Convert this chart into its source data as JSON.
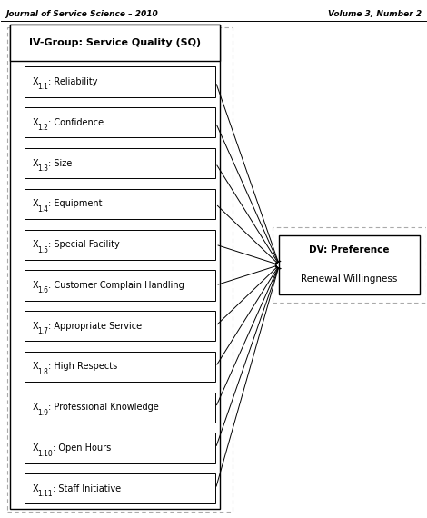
{
  "header_left": "Journal of Service Science – 2010",
  "header_right": "Volume 3, Number 2",
  "iv_group_label": "IV-Group: Service Quality (SQ)",
  "iv_items": [
    "X1.1: Reliability",
    "X1.2: Confidence",
    "X1.3: Size",
    "X1.4: Equipment",
    "X1.5: Special Facility",
    "X1.6: Customer Complain Handling",
    "X1.7: Appropriate Service",
    "X1.8: High Respects",
    "X1.9: Professional Knowledge",
    "X1.10: Open Hours",
    "X1.11: Staff Initiative"
  ],
  "iv_items_display": [
    [
      "X",
      "1.1",
      ": Reliability"
    ],
    [
      "X",
      "1.2",
      ": Confidence"
    ],
    [
      "X",
      "1.3",
      ": Size"
    ],
    [
      "X",
      "1.4",
      ": Equipment"
    ],
    [
      "X",
      "1.5",
      ": Special Facility"
    ],
    [
      "X",
      "1.6",
      ": Customer Complain Handling"
    ],
    [
      "X",
      "1.7",
      ": Appropriate Service"
    ],
    [
      "X",
      "1.8",
      ": High Respects"
    ],
    [
      "X",
      "1.9",
      ": Professional Knowledge"
    ],
    [
      "X",
      "1.10",
      ": Open Hours"
    ],
    [
      "X",
      "1.11",
      ": Staff Initiative"
    ]
  ],
  "dv_label": "DV: Preference",
  "dv_sublabel": "Renewal Willingness",
  "bg_color": "#ffffff",
  "box_color": "#000000",
  "dashed_color": "#aaaaaa",
  "arrow_color": "#000000",
  "header_fontsize": 6.5,
  "group_label_fontsize": 8,
  "item_fontsize": 7,
  "dv_fontsize": 7.5,
  "dv_sub_fontsize": 7.5,
  "figure_width": 4.7,
  "figure_height": 5.7,
  "dpi": 100
}
